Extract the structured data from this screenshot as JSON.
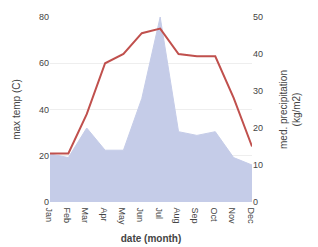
{
  "chart_data": {
    "type": "line",
    "xlabel": "date (month)",
    "ylabel": "max temp (C)",
    "y2label": "med. precipitation\n(kg/m2)",
    "categories": [
      "Jan",
      "Feb",
      "Mar",
      "Apr",
      "May",
      "Jun",
      "Jul",
      "Aug",
      "Sep",
      "Oct",
      "Nov",
      "Dec"
    ],
    "series": [
      {
        "type": "area",
        "axis": "y2",
        "color": "#c5cce8",
        "values": [
          13,
          12,
          20,
          14,
          14,
          28,
          50,
          19,
          18,
          19,
          12,
          10
        ]
      },
      {
        "type": "line",
        "color": "#c0504d",
        "values": [
          21,
          21,
          38,
          60,
          64,
          73,
          75,
          64,
          63,
          63,
          45,
          24
        ]
      }
    ],
    "ylim": [
      0,
      80
    ],
    "yticks": [
      0,
      20,
      40,
      60,
      80
    ],
    "y2lim": [
      0,
      50
    ],
    "y2ticks": [
      0,
      10,
      20,
      30,
      40,
      50
    ],
    "grid": true
  }
}
